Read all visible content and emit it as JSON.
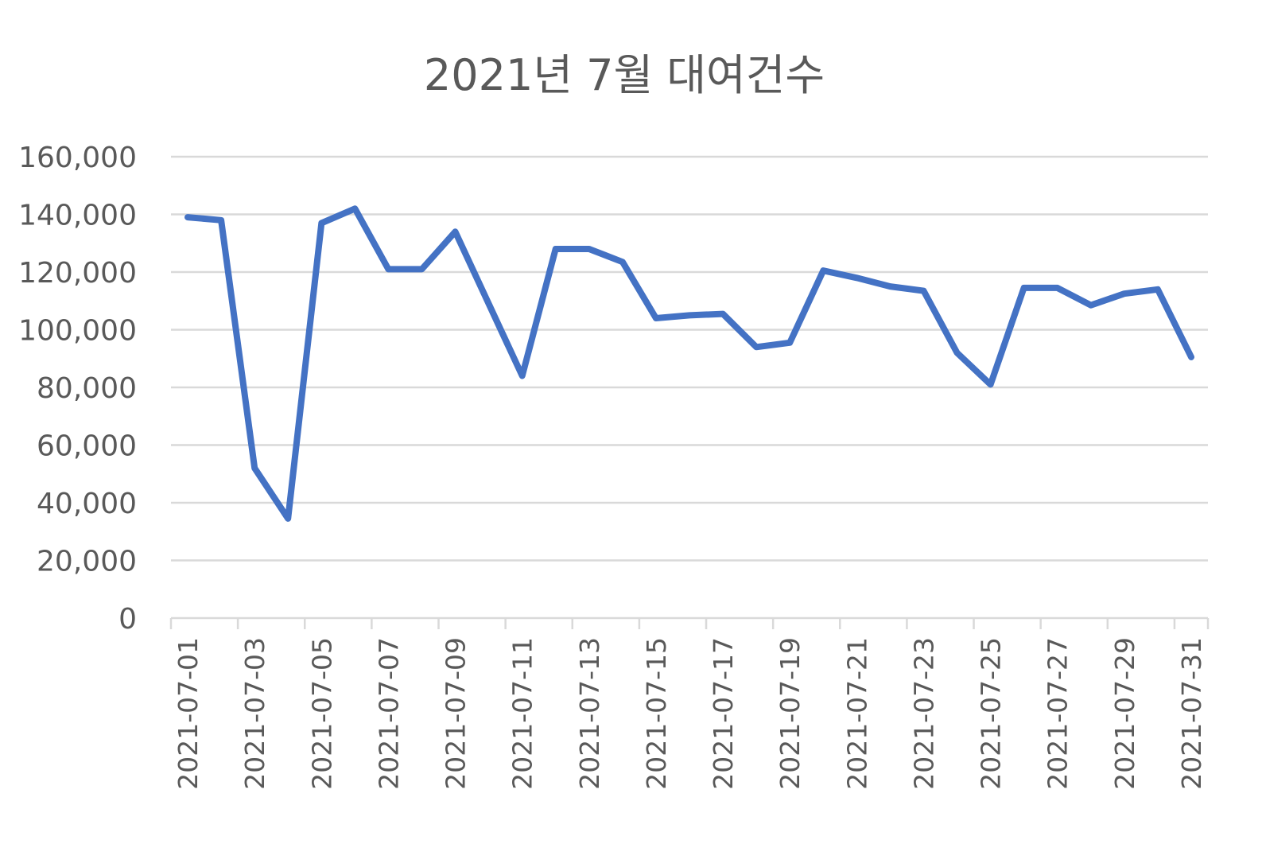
{
  "chart_data": {
    "type": "line",
    "title": "2021년 7월 대여건수",
    "xlabel": "",
    "ylabel": "",
    "ylim": [
      0,
      160000
    ],
    "y_ticks": [
      "0",
      "20,000",
      "40,000",
      "60,000",
      "80,000",
      "100,000",
      "120,000",
      "140,000",
      "160,000"
    ],
    "x_tick_labels": [
      "2021-07-01",
      "2021-07-03",
      "2021-07-05",
      "2021-07-07",
      "2021-07-09",
      "2021-07-11",
      "2021-07-13",
      "2021-07-15",
      "2021-07-17",
      "2021-07-19",
      "2021-07-21",
      "2021-07-23",
      "2021-07-25",
      "2021-07-27",
      "2021-07-29",
      "2021-07-31"
    ],
    "grid": true,
    "legend": "none",
    "colors": {
      "series": "#4472c4",
      "text": "#595959",
      "grid": "#d9d9d9"
    },
    "x": [
      "2021-07-01",
      "2021-07-02",
      "2021-07-03",
      "2021-07-04",
      "2021-07-05",
      "2021-07-06",
      "2021-07-07",
      "2021-07-08",
      "2021-07-09",
      "2021-07-10",
      "2021-07-11",
      "2021-07-12",
      "2021-07-13",
      "2021-07-14",
      "2021-07-15",
      "2021-07-16",
      "2021-07-17",
      "2021-07-18",
      "2021-07-19",
      "2021-07-20",
      "2021-07-21",
      "2021-07-22",
      "2021-07-23",
      "2021-07-24",
      "2021-07-25",
      "2021-07-26",
      "2021-07-27",
      "2021-07-28",
      "2021-07-29",
      "2021-07-30",
      "2021-07-31"
    ],
    "series": [
      {
        "values": [
          139000,
          138000,
          52000,
          34500,
          137000,
          142000,
          121000,
          121000,
          134000,
          109000,
          84000,
          128000,
          128000,
          123500,
          104000,
          105000,
          105500,
          94000,
          95500,
          120500,
          118000,
          115000,
          113500,
          92000,
          81000,
          114500,
          114500,
          108500,
          112500,
          114000,
          90500
        ]
      }
    ]
  }
}
